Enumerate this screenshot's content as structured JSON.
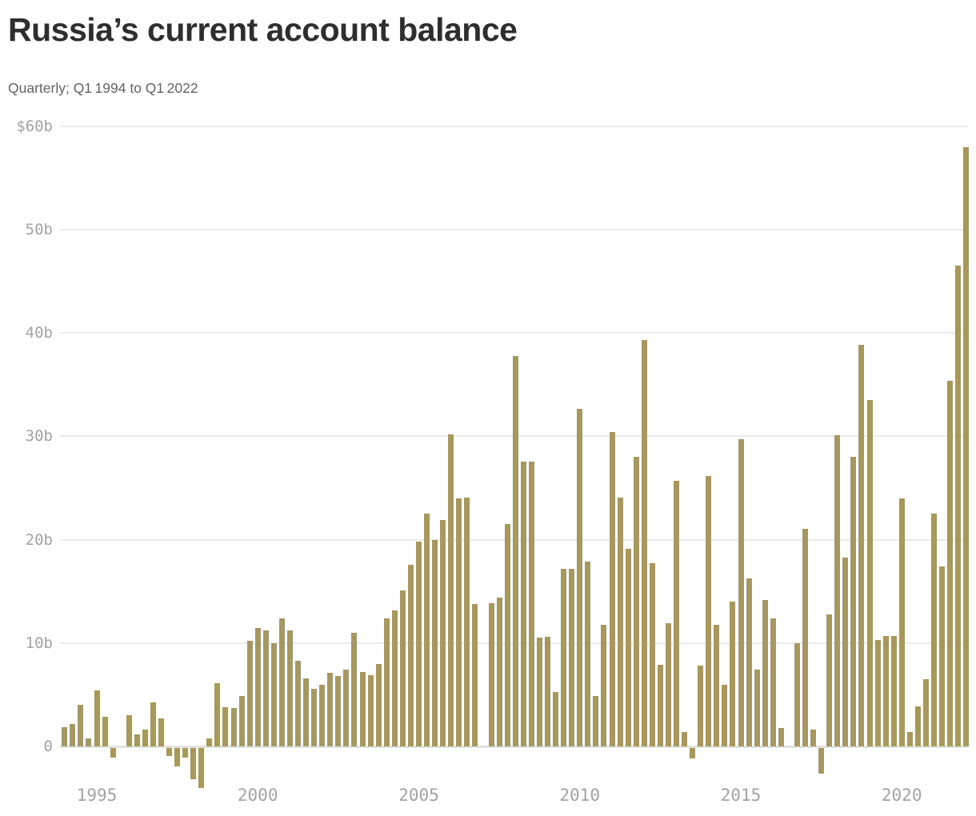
{
  "header": {
    "title": "Russia’s current account balance",
    "subtitle": "Quarterly; Q1 1994 to Q1 2022"
  },
  "chart_data": {
    "type": "bar",
    "title": "Russia’s current account balance",
    "subtitle": "Quarterly; Q1 1994 to Q1 2022",
    "unit": "billions of US dollars",
    "frequency": "quarterly",
    "x_start": "1994-Q1",
    "x_end": "2022-Q1",
    "values": [
      1.9,
      2.2,
      4.0,
      0.8,
      5.4,
      2.9,
      -0.9,
      0.0,
      3.0,
      1.2,
      1.6,
      4.3,
      2.7,
      -0.8,
      -1.8,
      -0.9,
      -3.0,
      -3.9,
      0.8,
      6.1,
      3.8,
      3.7,
      4.9,
      10.2,
      11.5,
      11.2,
      10.0,
      12.4,
      11.2,
      8.3,
      6.6,
      5.6,
      6.0,
      7.1,
      6.8,
      7.4,
      11.0,
      7.2,
      6.9,
      8.0,
      12.4,
      13.2,
      15.1,
      17.6,
      19.8,
      22.5,
      20.0,
      21.9,
      30.2,
      24.0,
      24.1,
      13.8,
      0.0,
      13.9,
      14.4,
      21.5,
      37.8,
      27.6,
      27.6,
      10.5,
      10.6,
      5.3,
      17.2,
      17.2,
      32.7,
      17.9,
      4.9,
      11.8,
      30.4,
      24.1,
      19.1,
      28.0,
      39.3,
      17.7,
      7.9,
      11.9,
      25.7,
      1.4,
      -1.0,
      7.8,
      26.2,
      11.8,
      6.0,
      14.0,
      29.7,
      16.3,
      7.4,
      14.2,
      12.4,
      1.8,
      0.0,
      10.0,
      21.1,
      1.6,
      -2.5,
      12.8,
      30.1,
      18.3,
      28.0,
      38.9,
      33.5,
      10.3,
      10.7,
      10.7,
      24.0,
      1.4,
      3.9,
      6.5,
      22.5,
      17.4,
      35.4,
      46.5,
      58.0
    ],
    "ylim": [
      -5,
      62
    ],
    "y_ticks": [
      {
        "value": 60,
        "label": "$60b"
      },
      {
        "value": 50,
        "label": "50b"
      },
      {
        "value": 40,
        "label": "40b"
      },
      {
        "value": 30,
        "label": "30b"
      },
      {
        "value": 20,
        "label": "20b"
      },
      {
        "value": 10,
        "label": "10b"
      },
      {
        "value": 0,
        "label": "0"
      }
    ],
    "x_ticks": [
      {
        "year": 1995,
        "label": "1995"
      },
      {
        "year": 2000,
        "label": "2000"
      },
      {
        "year": 2005,
        "label": "2005"
      },
      {
        "year": 2010,
        "label": "2010"
      },
      {
        "year": 2015,
        "label": "2015"
      },
      {
        "year": 2020,
        "label": "2020"
      }
    ],
    "grid": "horizontal",
    "legend": "none"
  },
  "colors": {
    "bar": "#a6985e",
    "title": "#2e2e2e",
    "subtitle": "#636363",
    "tick_label": "#a3a3a1",
    "gridline": "#ebebe9",
    "zero_axis": "#e2e2e0",
    "background": "#ffffff"
  }
}
